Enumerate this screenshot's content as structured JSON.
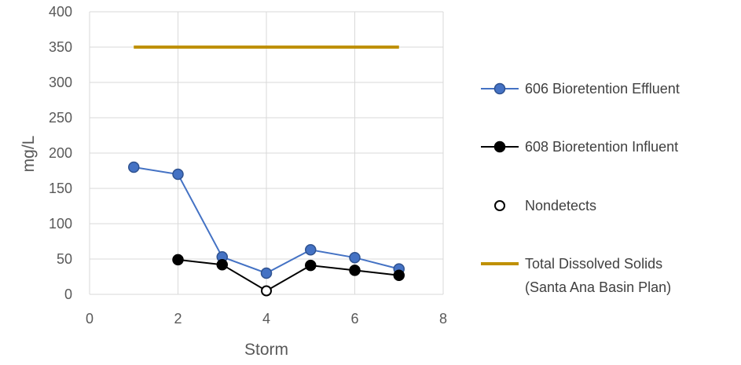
{
  "chart_data": {
    "type": "line",
    "xlabel": "Storm",
    "ylabel": "mg/L",
    "xlim": [
      0,
      8
    ],
    "ylim": [
      0,
      400
    ],
    "x_ticks": [
      "0",
      "2",
      "4",
      "6",
      "8"
    ],
    "y_ticks": [
      "0",
      "50",
      "100",
      "150",
      "200",
      "250",
      "300",
      "350",
      "400"
    ],
    "grid": true,
    "legend_position": "right",
    "series": [
      {
        "name": "606 Bioretention Effluent",
        "color": "#4472c4",
        "marker": "filled-circle",
        "points": [
          {
            "x": 1,
            "y": 180
          },
          {
            "x": 2,
            "y": 170
          },
          {
            "x": 3,
            "y": 53
          },
          {
            "x": 4,
            "y": 30
          },
          {
            "x": 5,
            "y": 63
          },
          {
            "x": 6,
            "y": 52
          },
          {
            "x": 7,
            "y": 36
          }
        ]
      },
      {
        "name": "608 Bioretention Influent",
        "color": "#000000",
        "marker": "filled-circle",
        "points": [
          {
            "x": 2,
            "y": 49
          },
          {
            "x": 3,
            "y": 42
          },
          {
            "x": 4,
            "y": 5,
            "nondetect": true
          },
          {
            "x": 5,
            "y": 41
          },
          {
            "x": 6,
            "y": 34
          },
          {
            "x": 7,
            "y": 27
          }
        ]
      }
    ],
    "nondetects": {
      "name": "Nondetects",
      "marker": "open-circle",
      "color": "#000000"
    },
    "reference_line": {
      "name": "Total Dissolved Solids (Santa Ana Basin Plan)",
      "name_lines": [
        "Total Dissolved Solids",
        "(Santa Ana Basin Plan)"
      ],
      "color": "#bf9000",
      "x": [
        1,
        7
      ],
      "y": 350
    }
  }
}
